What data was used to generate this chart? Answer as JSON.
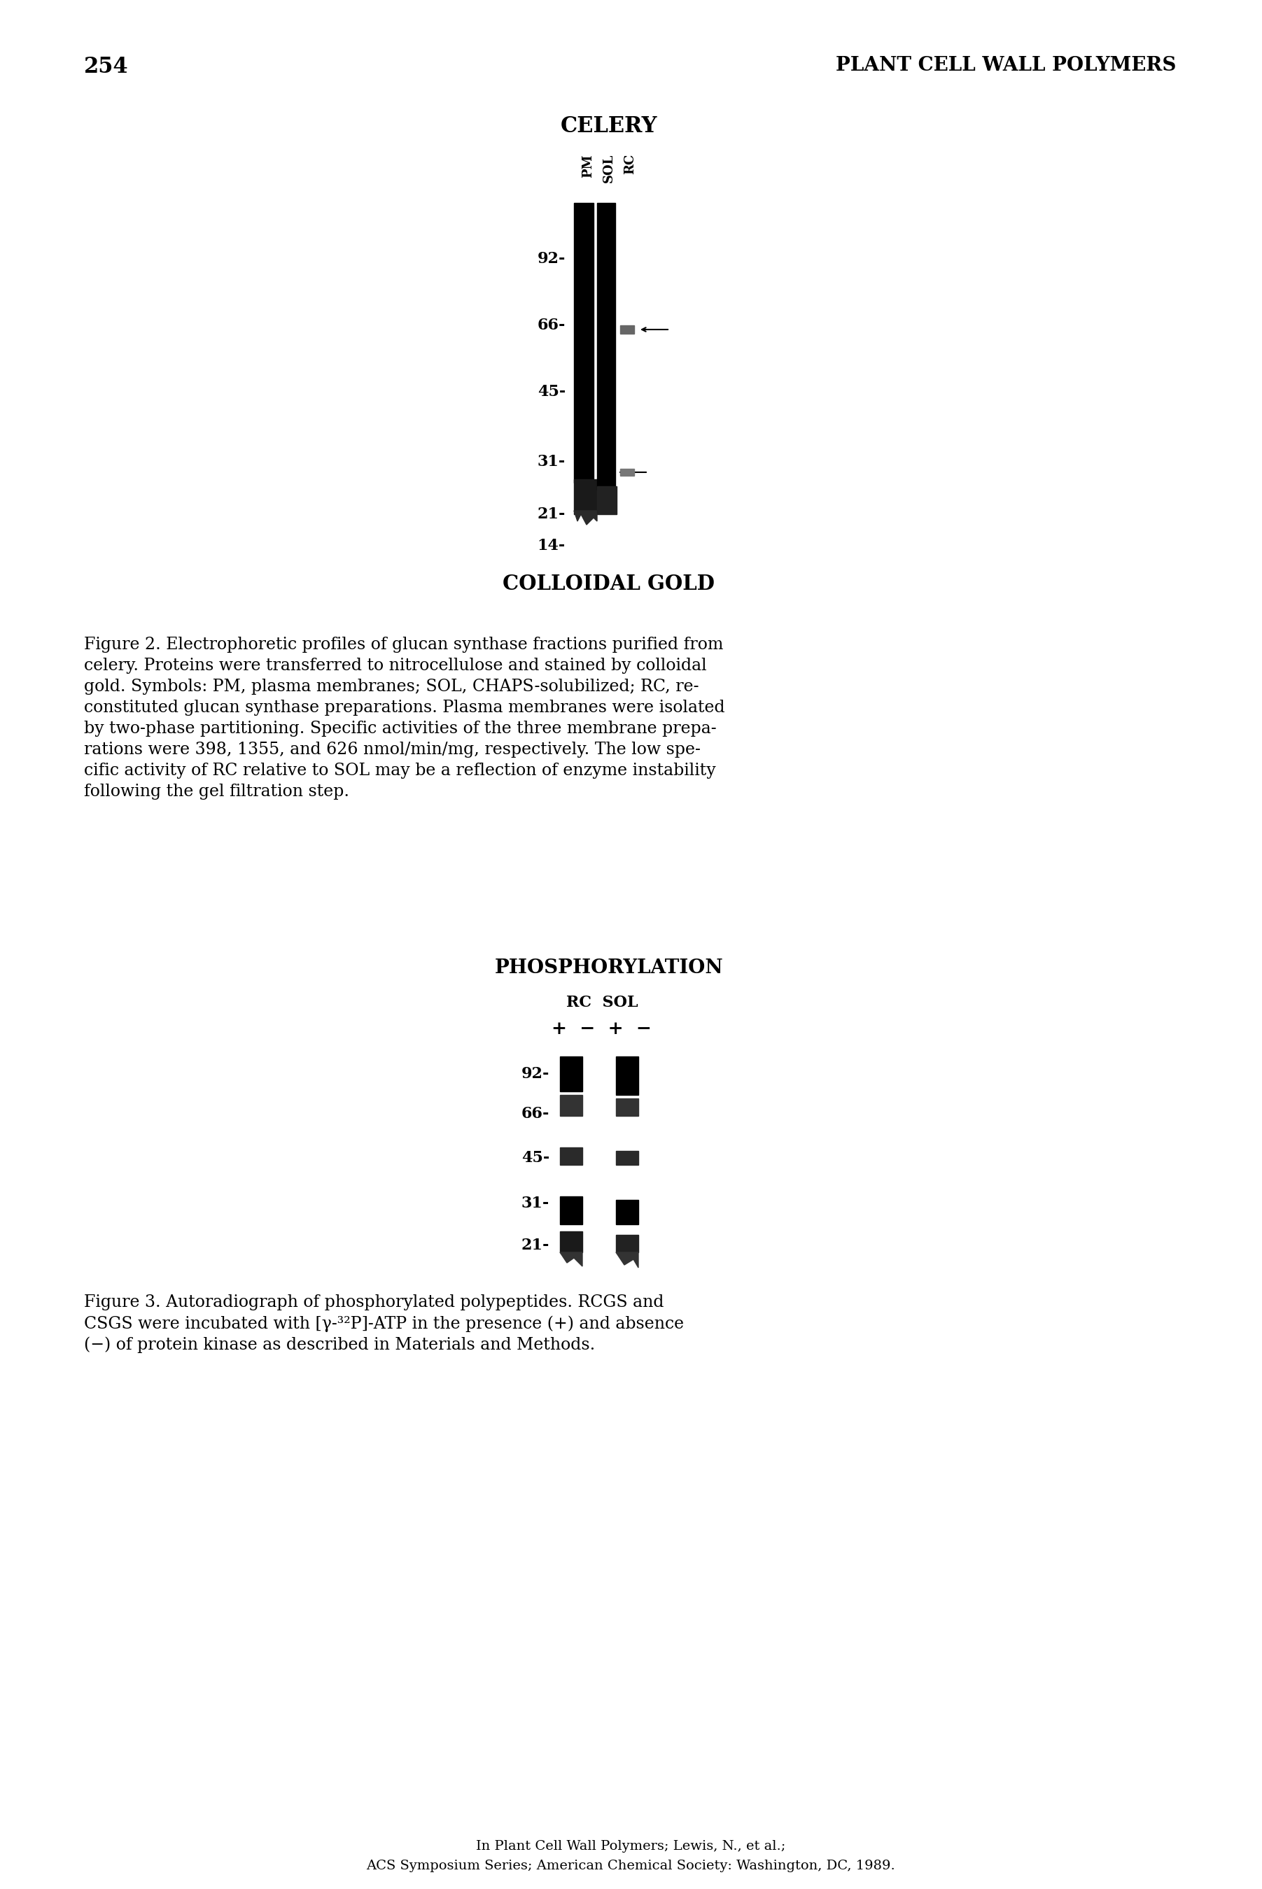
{
  "page_number": "254",
  "header_right": "PLANT CELL WALL POLYMERS",
  "fig2_title": "CELERY",
  "fig2_lane_labels": [
    "PM",
    "SOL",
    "RC"
  ],
  "fig2_mw_labels": [
    "92-",
    "66-",
    "45-",
    "31-",
    "21-",
    "14-"
  ],
  "fig2_xlabel": "COLLOIDAL GOLD",
  "fig3_title": "PHOSPHORYLATION",
  "fig3_mw_labels": [
    "92-",
    "66-",
    "45-",
    "31-",
    "21-"
  ],
  "footer_line1": "In Plant Cell Wall Polymers; Lewis, N., et al.;",
  "footer_line2": "ACS Symposium Series; American Chemical Society: Washington, DC, 1989.",
  "bg_color": "#ffffff",
  "text_color": "#000000",
  "caption2_lines": [
    "Figure 2. Electrophoretic profiles of glucan synthase fractions purified from",
    "celery. Proteins were transferred to nitrocellulose and stained by colloidal",
    "gold. Symbols: PM, plasma membranes; SOL, CHAPS-solubilized; RC, re-",
    "constituted glucan synthase preparations. Plasma membranes were isolated",
    "by two-phase partitioning. Specific activities of the three membrane prepa-",
    "rations were 398, 1355, and 626 nmol/min/mg, respectively. The low spe-",
    "cific activity of RC relative to SOL may be a reflection of enzyme instability",
    "following the gel filtration step."
  ],
  "caption2_bold_words": [
    "398,",
    "1355,",
    "626",
    "RC",
    "SOL"
  ],
  "caption3_lines": [
    "Figure 3. Autoradiograph of phosphorylated polypeptides. RCGS and",
    "CSGS were incubated with [γ-³²P]-ATP in the presence (+) and absence",
    "(−) of protein kinase as described in Materials and Methods."
  ]
}
